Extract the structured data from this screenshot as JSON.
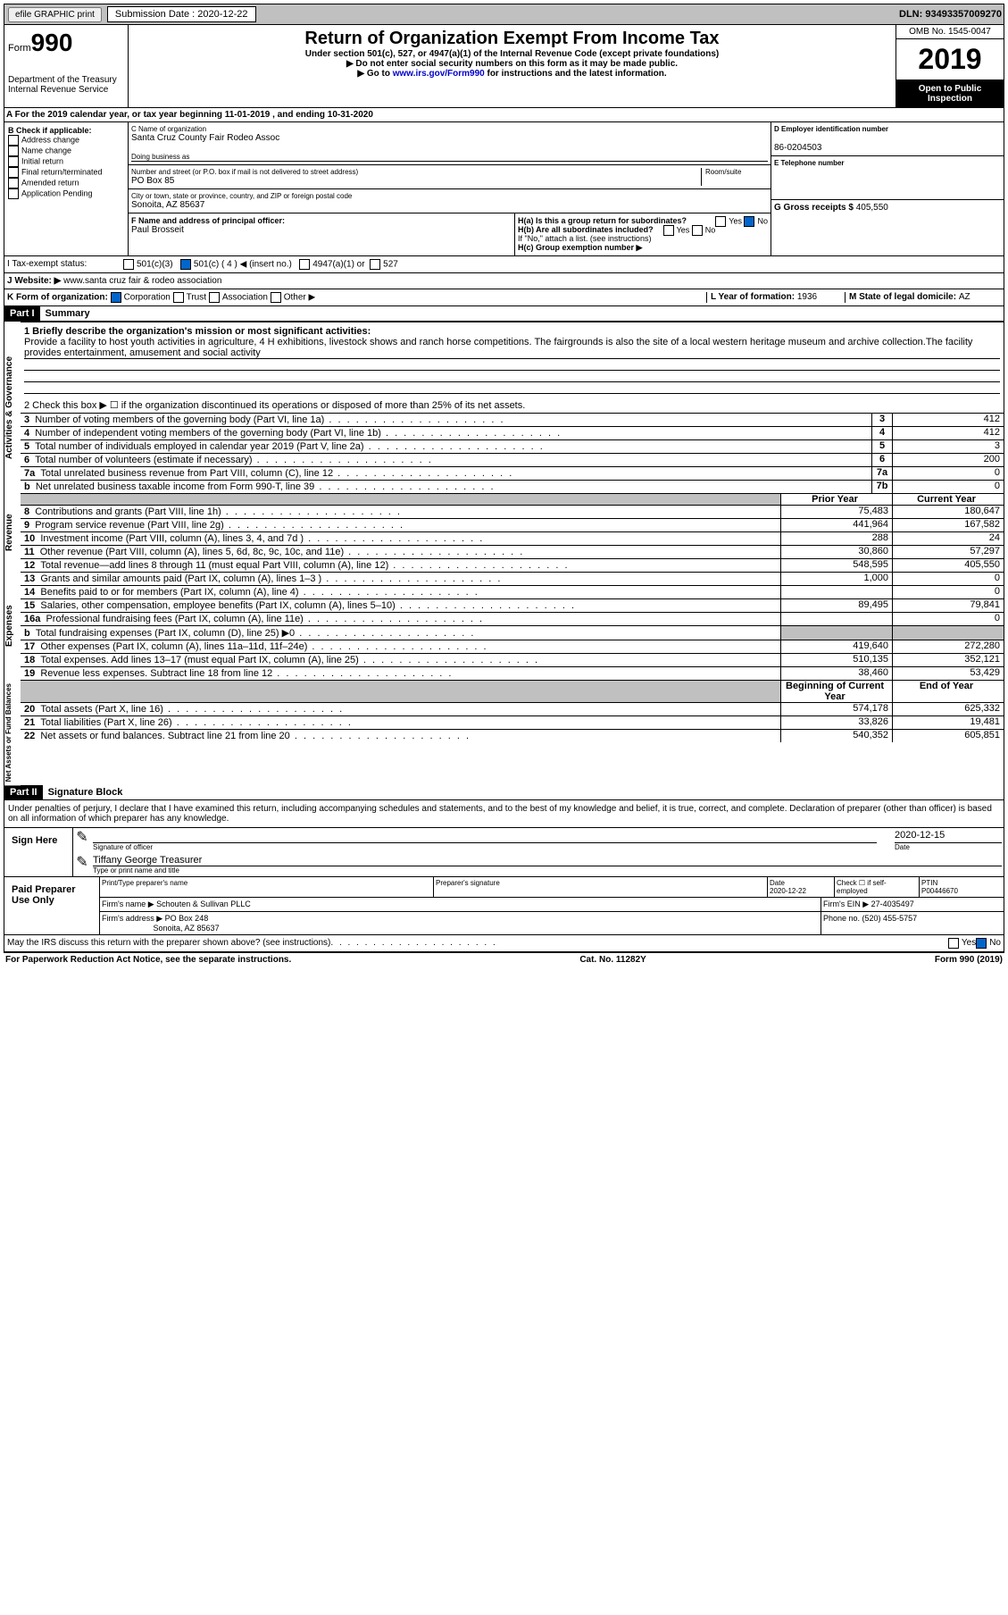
{
  "top": {
    "efile": "efile GRAPHIC print",
    "submission_label": "Submission Date : 2020-12-22",
    "dln": "DLN: 93493357009270"
  },
  "header": {
    "form_word": "Form",
    "form_num": "990",
    "dept": "Department of the Treasury\nInternal Revenue Service",
    "title": "Return of Organization Exempt From Income Tax",
    "subtitle": "Under section 501(c), 527, or 4947(a)(1) of the Internal Revenue Code (except private foundations)",
    "note1": "▶ Do not enter social security numbers on this form as it may be made public.",
    "note2_pre": "▶ Go to ",
    "note2_link": "www.irs.gov/Form990",
    "note2_post": " for instructions and the latest information.",
    "omb": "OMB No. 1545-0047",
    "year": "2019",
    "inspection": "Open to Public Inspection"
  },
  "sectionA": "A For the 2019 calendar year, or tax year beginning 11-01-2019   , and ending 10-31-2020",
  "colB": {
    "header": "B Check if applicable:",
    "items": [
      "Address change",
      "Name change",
      "Initial return",
      "Final return/terminated",
      "Amended return",
      "Application Pending"
    ]
  },
  "colC": {
    "name_label": "C Name of organization",
    "name": "Santa Cruz County Fair Rodeo Assoc",
    "dba_label": "Doing business as",
    "street_label": "Number and street (or P.O. box if mail is not delivered to street address)",
    "room_label": "Room/suite",
    "street": "PO Box 85",
    "city_label": "City or town, state or province, country, and ZIP or foreign postal code",
    "city": "Sonoita, AZ  85637",
    "officer_label": "F  Name and address of principal officer:",
    "officer": "Paul Brosseit"
  },
  "colD": {
    "ein_label": "D Employer identification number",
    "ein": "86-0204503",
    "phone_label": "E Telephone number",
    "gross_label": "G Gross receipts $ ",
    "gross": "405,550"
  },
  "colH": {
    "ha": "H(a)  Is this a group return for subordinates?",
    "hb": "H(b)  Are all subordinates included?",
    "note": "If \"No,\" attach a list. (see instructions)",
    "hc": "H(c)  Group exemption number ▶",
    "yes": "Yes",
    "no": "No"
  },
  "rowI": {
    "label": "I   Tax-exempt status:",
    "c3": "501(c)(3)",
    "c": "501(c) ( 4 ) ◀ (insert no.)",
    "a1": "4947(a)(1) or",
    "s527": "527"
  },
  "rowJ": {
    "label": "J   Website: ▶",
    "value": "www.santa cruz fair & rodeo association"
  },
  "rowK": {
    "label": "K Form of organization:",
    "corp": "Corporation",
    "trust": "Trust",
    "assoc": "Association",
    "other": "Other ▶"
  },
  "rowL": {
    "label": "L Year of formation: ",
    "value": "1936"
  },
  "rowM": {
    "label": "M State of legal domicile: ",
    "value": "AZ"
  },
  "part1": {
    "tag": "Part I",
    "title": "Summary"
  },
  "summary": {
    "mission_label": "1  Briefly describe the organization's mission or most significant activities:",
    "mission": "Provide a facility to host youth activities in agriculture, 4 H exhibitions, livestock shows and ranch horse competitions. The fairgrounds is also the site of a local western heritage museum and archive collection.The facility provides entertainment, amusement and social activity",
    "line2": "2   Check this box ▶ ☐  if the organization discontinued its operations or disposed of more than 25% of its net assets.",
    "rows_gov": [
      {
        "n": "3",
        "desc": "Number of voting members of the governing body (Part VI, line 1a)",
        "box": "3",
        "val": "412"
      },
      {
        "n": "4",
        "desc": "Number of independent voting members of the governing body (Part VI, line 1b)",
        "box": "4",
        "val": "412"
      },
      {
        "n": "5",
        "desc": "Total number of individuals employed in calendar year 2019 (Part V, line 2a)",
        "box": "5",
        "val": "3"
      },
      {
        "n": "6",
        "desc": "Total number of volunteers (estimate if necessary)",
        "box": "6",
        "val": "200"
      },
      {
        "n": "7a",
        "desc": "Total unrelated business revenue from Part VIII, column (C), line 12",
        "box": "7a",
        "val": "0"
      },
      {
        "n": "b",
        "desc": "Net unrelated business taxable income from Form 990-T, line 39",
        "box": "7b",
        "val": "0"
      }
    ],
    "hdr_prior": "Prior Year",
    "hdr_curr": "Current Year",
    "rows_rev": [
      {
        "n": "8",
        "desc": "Contributions and grants (Part VIII, line 1h)",
        "prior": "75,483",
        "curr": "180,647"
      },
      {
        "n": "9",
        "desc": "Program service revenue (Part VIII, line 2g)",
        "prior": "441,964",
        "curr": "167,582"
      },
      {
        "n": "10",
        "desc": "Investment income (Part VIII, column (A), lines 3, 4, and 7d )",
        "prior": "288",
        "curr": "24"
      },
      {
        "n": "11",
        "desc": "Other revenue (Part VIII, column (A), lines 5, 6d, 8c, 9c, 10c, and 11e)",
        "prior": "30,860",
        "curr": "57,297"
      },
      {
        "n": "12",
        "desc": "Total revenue—add lines 8 through 11 (must equal Part VIII, column (A), line 12)",
        "prior": "548,595",
        "curr": "405,550"
      }
    ],
    "rows_exp": [
      {
        "n": "13",
        "desc": "Grants and similar amounts paid (Part IX, column (A), lines 1–3 )",
        "prior": "1,000",
        "curr": "0"
      },
      {
        "n": "14",
        "desc": "Benefits paid to or for members (Part IX, column (A), line 4)",
        "prior": "",
        "curr": "0"
      },
      {
        "n": "15",
        "desc": "Salaries, other compensation, employee benefits (Part IX, column (A), lines 5–10)",
        "prior": "89,495",
        "curr": "79,841"
      },
      {
        "n": "16a",
        "desc": "Professional fundraising fees (Part IX, column (A), line 11e)",
        "prior": "",
        "curr": "0"
      },
      {
        "n": "b",
        "desc": "Total fundraising expenses (Part IX, column (D), line 25) ▶0",
        "prior": "SHADE",
        "curr": "SHADE"
      },
      {
        "n": "17",
        "desc": "Other expenses (Part IX, column (A), lines 11a–11d, 11f–24e)",
        "prior": "419,640",
        "curr": "272,280"
      },
      {
        "n": "18",
        "desc": "Total expenses. Add lines 13–17 (must equal Part IX, column (A), line 25)",
        "prior": "510,135",
        "curr": "352,121"
      },
      {
        "n": "19",
        "desc": "Revenue less expenses. Subtract line 18 from line 12",
        "prior": "38,460",
        "curr": "53,429"
      }
    ],
    "hdr_begin": "Beginning of Current Year",
    "hdr_end": "End of Year",
    "rows_net": [
      {
        "n": "20",
        "desc": "Total assets (Part X, line 16)",
        "prior": "574,178",
        "curr": "625,332"
      },
      {
        "n": "21",
        "desc": "Total liabilities (Part X, line 26)",
        "prior": "33,826",
        "curr": "19,481"
      },
      {
        "n": "22",
        "desc": "Net assets or fund balances. Subtract line 21 from line 20",
        "prior": "540,352",
        "curr": "605,851"
      }
    ],
    "side_gov": "Activities & Governance",
    "side_rev": "Revenue",
    "side_exp": "Expenses",
    "side_net": "Net Assets or Fund Balances"
  },
  "part2": {
    "tag": "Part II",
    "title": "Signature Block"
  },
  "declaration": "Under penalties of perjury, I declare that I have examined this return, including accompanying schedules and statements, and to the best of my knowledge and belief, it is true, correct, and complete. Declaration of preparer (other than officer) is based on all information of which preparer has any knowledge.",
  "sign": {
    "here": "Sign Here",
    "sig_officer": "Signature of officer",
    "date": "Date",
    "date_val": "2020-12-15",
    "name": "Tiffany George Treasurer",
    "name_label": "Type or print name and title"
  },
  "paid": {
    "label": "Paid Preparer Use Only",
    "print_label": "Print/Type preparer's name",
    "sig_label": "Preparer's signature",
    "date_label": "Date",
    "date_val": "2020-12-22",
    "check_label": "Check ☐ if self-employed",
    "ptin_label": "PTIN",
    "ptin": "P00446670",
    "firm_name_label": "Firm's name    ▶",
    "firm_name": "Schouten & Sullivan PLLC",
    "firm_ein_label": "Firm's EIN ▶",
    "firm_ein": "27-4035497",
    "firm_addr_label": "Firm's address ▶",
    "firm_addr": "PO Box 248",
    "firm_city": "Sonoita, AZ  85637",
    "phone_label": "Phone no. ",
    "phone": "(520) 455-5757"
  },
  "discuss": "May the IRS discuss this return with the preparer shown above? (see instructions)",
  "footer": {
    "left": "For Paperwork Reduction Act Notice, see the separate instructions.",
    "mid": "Cat. No. 11282Y",
    "right": "Form 990 (2019)"
  }
}
